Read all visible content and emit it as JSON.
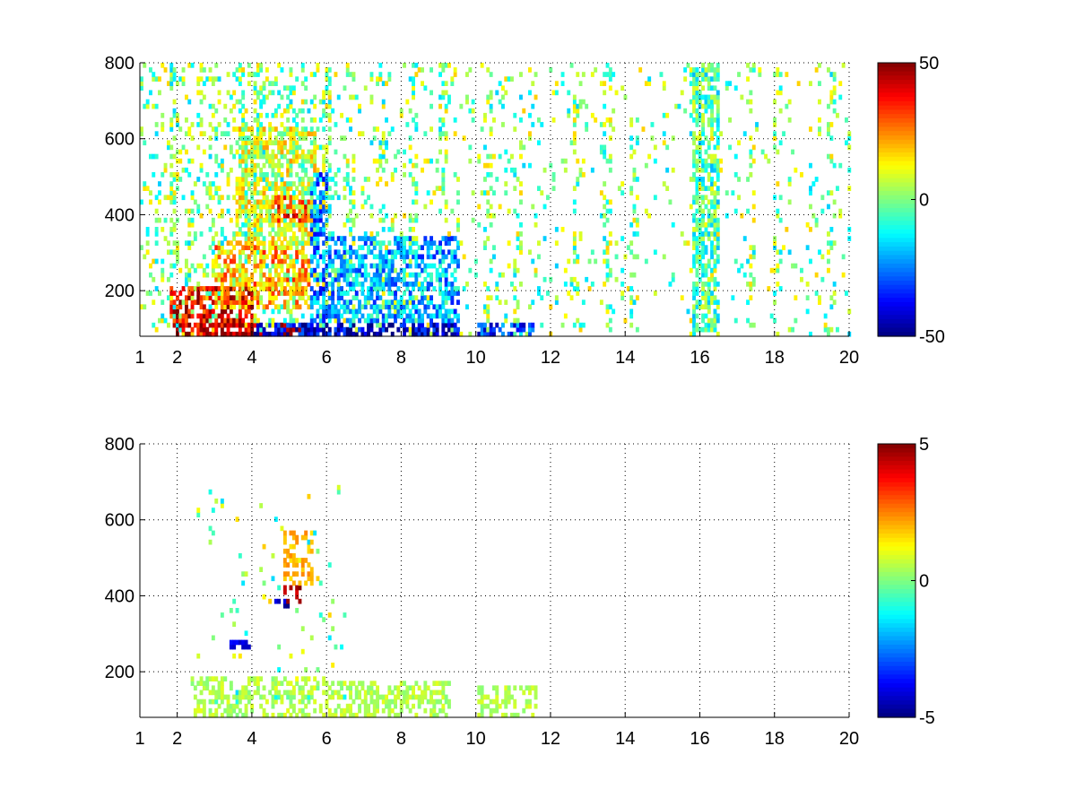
{
  "chart_data": [
    {
      "type": "heatmap",
      "title": "",
      "xlabel": "",
      "ylabel": "",
      "xlim": [
        1,
        20
      ],
      "ylim": [
        80,
        800
      ],
      "grid": true,
      "grid_style": "dotted",
      "xticks": [
        1,
        2,
        4,
        6,
        8,
        10,
        12,
        14,
        16,
        18,
        20
      ],
      "xtick_labels": [
        "1",
        "2",
        "4",
        "6",
        "8",
        "10",
        "12",
        "14",
        "16",
        "18",
        "20"
      ],
      "yticks": [
        200,
        400,
        600,
        800
      ],
      "ytick_labels": [
        "200",
        "400",
        "600",
        "800"
      ],
      "colormap": "jet",
      "colorbar": {
        "min": -50,
        "max": 50,
        "ticks": [
          50,
          0,
          -50
        ],
        "tick_labels": [
          "50",
          "0",
          "-50"
        ]
      },
      "regions": [
        {
          "x": [
            1.8,
            4.0
          ],
          "y": [
            80,
            200
          ],
          "value": 40
        },
        {
          "x": [
            2.2,
            5.5
          ],
          "y": [
            80,
            110
          ],
          "value": 45
        },
        {
          "x": [
            4.0,
            9.5
          ],
          "y": [
            80,
            110
          ],
          "value": -42
        },
        {
          "x": [
            3.0,
            5.5
          ],
          "y": [
            150,
            320
          ],
          "value": 20
        },
        {
          "x": [
            3.5,
            5.7
          ],
          "y": [
            320,
            620
          ],
          "value": 8
        },
        {
          "x": [
            4.5,
            5.5
          ],
          "y": [
            380,
            450
          ],
          "value": 30
        },
        {
          "x": [
            5.5,
            6.0
          ],
          "y": [
            100,
            500
          ],
          "value": -25
        },
        {
          "x": [
            6.0,
            9.5
          ],
          "y": [
            110,
            340
          ],
          "value": -20
        },
        {
          "x": [
            10.0,
            11.5
          ],
          "y": [
            80,
            110
          ],
          "value": -30
        },
        {
          "x": [
            15.8,
            16.5
          ],
          "y": [
            80,
            800
          ],
          "value": -5
        }
      ]
    },
    {
      "type": "heatmap",
      "title": "",
      "xlabel": "",
      "ylabel": "",
      "xlim": [
        1,
        20
      ],
      "ylim": [
        80,
        800
      ],
      "grid": true,
      "grid_style": "dotted",
      "xticks": [
        1,
        2,
        4,
        6,
        8,
        10,
        12,
        14,
        16,
        18,
        20
      ],
      "xtick_labels": [
        "1",
        "2",
        "4",
        "6",
        "8",
        "10",
        "12",
        "14",
        "16",
        "18",
        "20"
      ],
      "yticks": [
        200,
        400,
        600,
        800
      ],
      "ytick_labels": [
        "200",
        "400",
        "600",
        "800"
      ],
      "colormap": "jet",
      "colorbar": {
        "min": -5,
        "max": 5,
        "ticks": [
          5,
          0,
          -5
        ],
        "tick_labels": [
          "5",
          "0",
          "-5"
        ]
      },
      "regions": [
        {
          "x": [
            2.3,
            6.0
          ],
          "y": [
            80,
            180
          ],
          "value": 0.5
        },
        {
          "x": [
            6.0,
            9.3
          ],
          "y": [
            80,
            170
          ],
          "value": 0.5
        },
        {
          "x": [
            10.0,
            11.6
          ],
          "y": [
            80,
            160
          ],
          "value": 0.5
        },
        {
          "x": [
            4.8,
            5.3
          ],
          "y": [
            370,
            420
          ],
          "value": 4.5
        },
        {
          "x": [
            4.5,
            5.0
          ],
          "y": [
            360,
            390
          ],
          "value": -4.5
        },
        {
          "x": [
            3.4,
            3.9
          ],
          "y": [
            260,
            280
          ],
          "value": -4
        },
        {
          "x": [
            4.8,
            5.6
          ],
          "y": [
            420,
            560
          ],
          "value": 2
        }
      ]
    }
  ]
}
